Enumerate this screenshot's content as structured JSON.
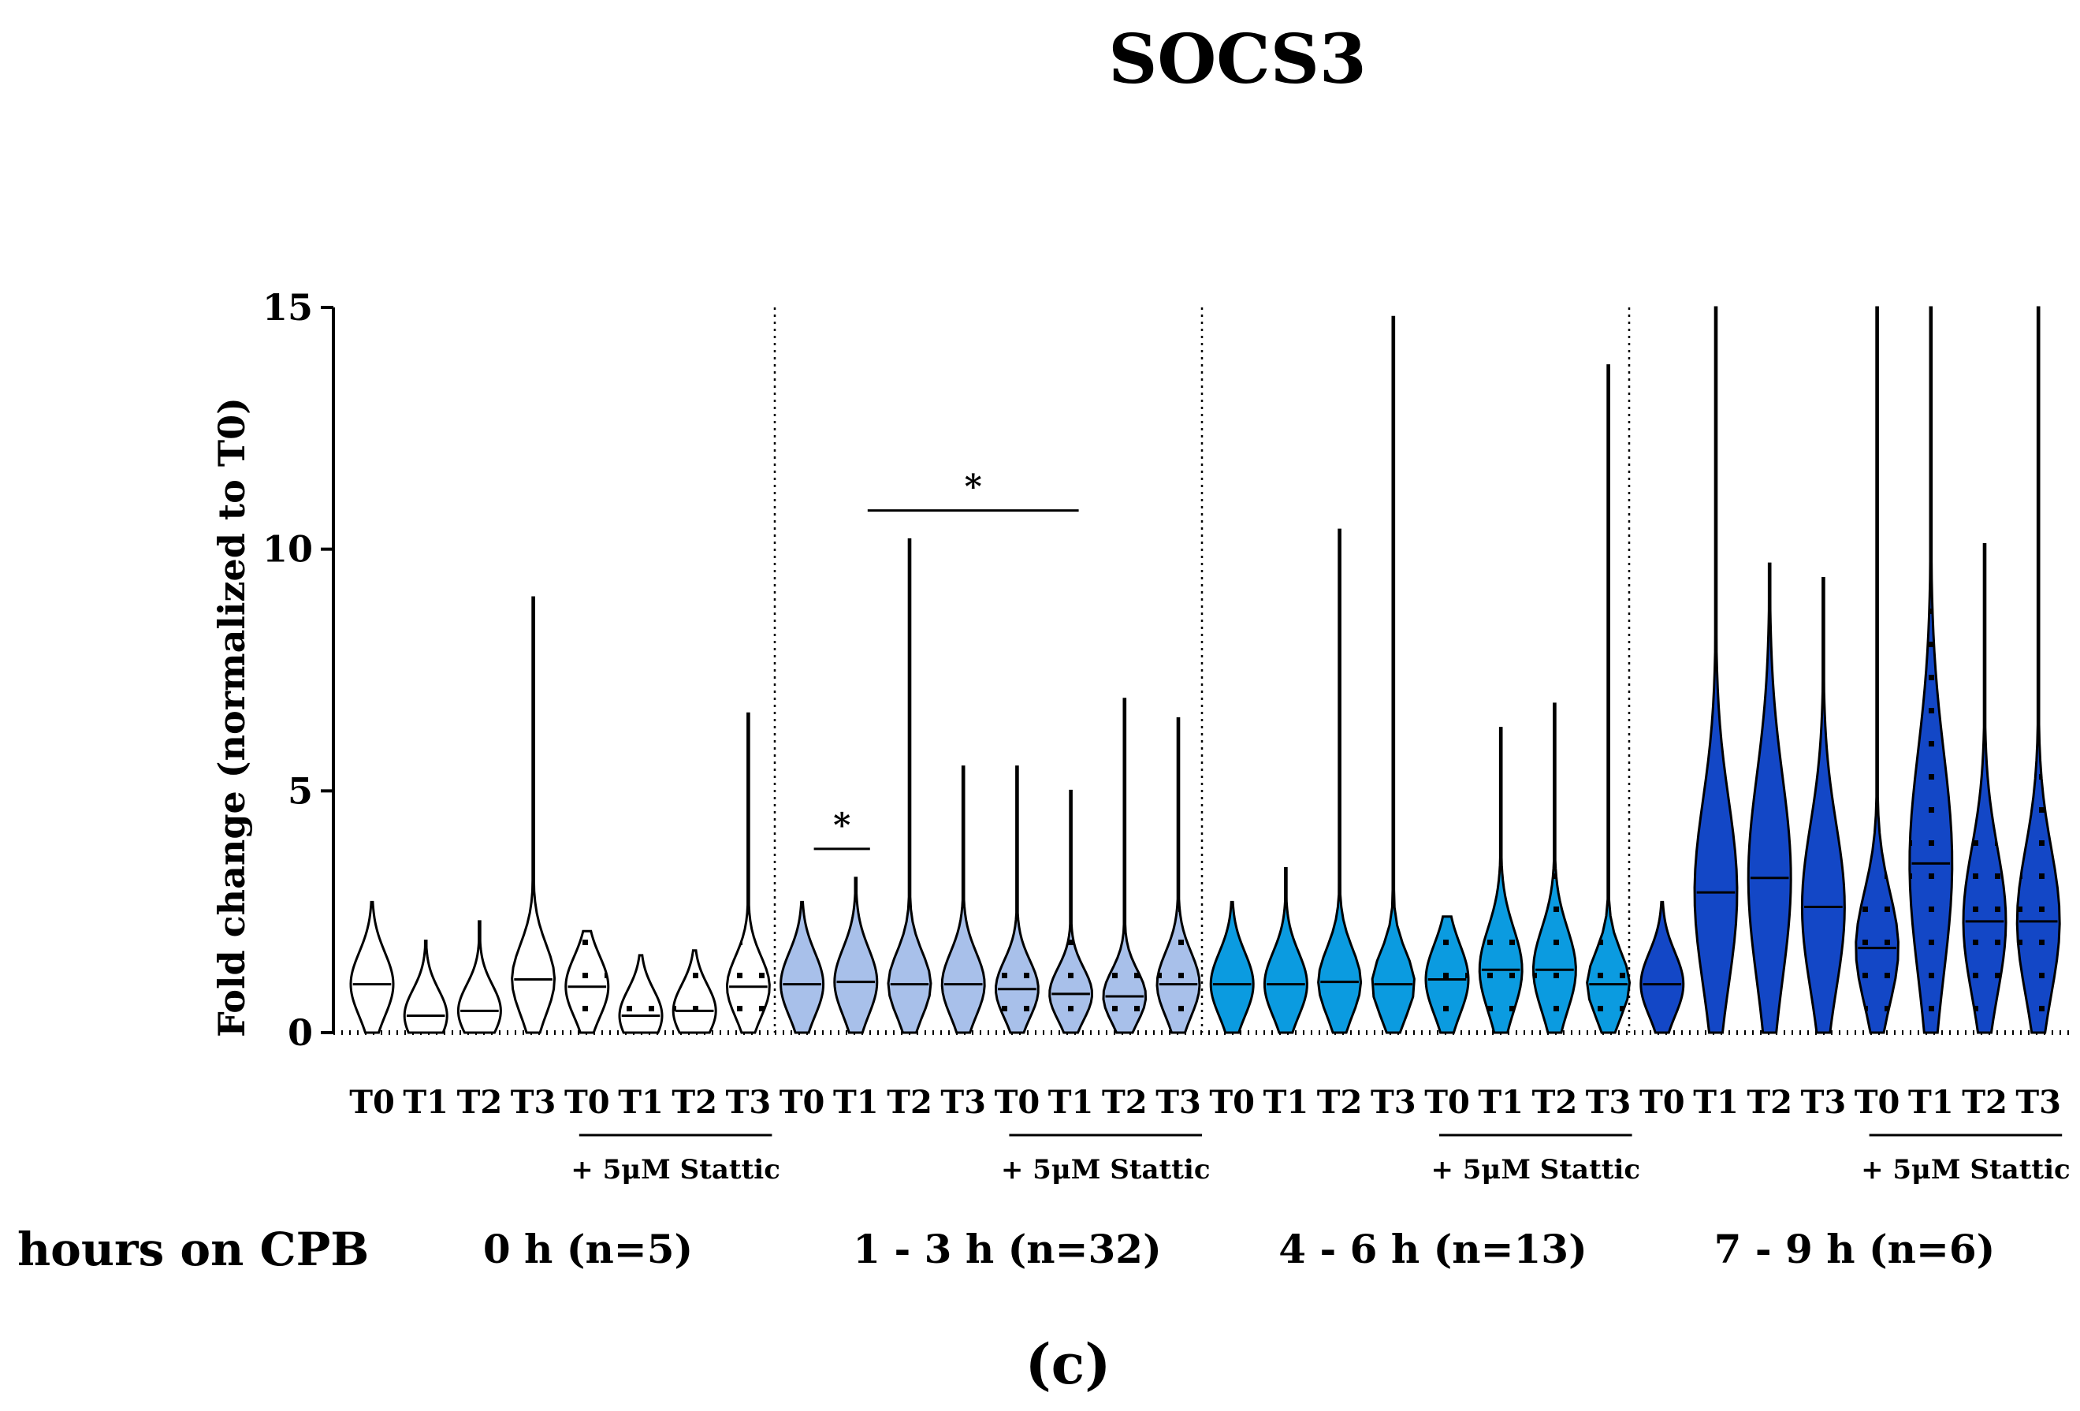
{
  "chart_data": {
    "type": "violin",
    "title": "SOCS3",
    "ylabel": "Fold change (normalized to T0)",
    "xlabel": "hours on CPB",
    "panel_label": "(c)",
    "ylim": [
      0,
      15
    ],
    "yticks": [
      0,
      5,
      10,
      15
    ],
    "timepoints": [
      "T0",
      "T1",
      "T2",
      "T3"
    ],
    "treatment_label": "+ 5μM Stattic",
    "colors": {
      "0h": "#ffffff",
      "1-3h": "#a8c0ea",
      "4-6h": "#0b9be0",
      "7-9h-light": "#1347c6",
      "7-9h-dark": "#0a2aa0"
    },
    "groups": [
      {
        "label": "0 h (n=5)",
        "color": "#ffffff",
        "violins": [
          {
            "tp": "T0",
            "stattic": false,
            "median": 1.0,
            "max": 2.7,
            "min": 0
          },
          {
            "tp": "T1",
            "stattic": false,
            "median": 0.35,
            "max": 1.9,
            "min": 0
          },
          {
            "tp": "T2",
            "stattic": false,
            "median": 0.45,
            "max": 2.3,
            "min": 0
          },
          {
            "tp": "T3",
            "stattic": false,
            "median": 1.1,
            "max": 9.0,
            "min": 0
          },
          {
            "tp": "T0",
            "stattic": true,
            "median": 0.95,
            "max": 2.1,
            "min": 0
          },
          {
            "tp": "T1",
            "stattic": true,
            "median": 0.35,
            "max": 1.6,
            "min": 0
          },
          {
            "tp": "T2",
            "stattic": true,
            "median": 0.45,
            "max": 1.7,
            "min": 0
          },
          {
            "tp": "T3",
            "stattic": true,
            "median": 0.95,
            "max": 6.6,
            "min": 0
          }
        ]
      },
      {
        "label": "1 - 3 h (n=32)",
        "color": "#a8c0ea",
        "violins": [
          {
            "tp": "T0",
            "stattic": false,
            "median": 1.0,
            "max": 2.7,
            "min": 0
          },
          {
            "tp": "T1",
            "stattic": false,
            "median": 1.05,
            "max": 3.2,
            "min": 0
          },
          {
            "tp": "T2",
            "stattic": false,
            "median": 1.0,
            "max": 10.2,
            "min": 0
          },
          {
            "tp": "T3",
            "stattic": false,
            "median": 1.0,
            "max": 5.5,
            "min": 0
          },
          {
            "tp": "T0",
            "stattic": true,
            "median": 0.9,
            "max": 5.5,
            "min": 0
          },
          {
            "tp": "T1",
            "stattic": true,
            "median": 0.8,
            "max": 5.0,
            "min": 0
          },
          {
            "tp": "T2",
            "stattic": true,
            "median": 0.75,
            "max": 6.9,
            "min": 0
          },
          {
            "tp": "T3",
            "stattic": true,
            "median": 1.0,
            "max": 6.5,
            "min": 0
          }
        ]
      },
      {
        "label": "4 - 6 h (n=13)",
        "color": "#0b9be0",
        "violins": [
          {
            "tp": "T0",
            "stattic": false,
            "median": 1.0,
            "max": 2.7,
            "min": 0
          },
          {
            "tp": "T1",
            "stattic": false,
            "median": 1.0,
            "max": 3.4,
            "min": 0
          },
          {
            "tp": "T2",
            "stattic": false,
            "median": 1.05,
            "max": 10.4,
            "min": 0
          },
          {
            "tp": "T3",
            "stattic": false,
            "median": 1.0,
            "max": 14.8,
            "min": 0
          },
          {
            "tp": "T0",
            "stattic": true,
            "median": 1.1,
            "max": 2.4,
            "min": 0
          },
          {
            "tp": "T1",
            "stattic": true,
            "median": 1.3,
            "max": 6.3,
            "min": 0
          },
          {
            "tp": "T2",
            "stattic": true,
            "median": 1.3,
            "max": 6.8,
            "min": 0
          },
          {
            "tp": "T3",
            "stattic": true,
            "median": 1.0,
            "max": 13.8,
            "min": 0
          }
        ]
      },
      {
        "label": "7 - 9 h (n=6)",
        "color": "#1347c6",
        "violins": [
          {
            "tp": "T0",
            "stattic": false,
            "median": 1.0,
            "max": 2.7,
            "min": 0
          },
          {
            "tp": "T1",
            "stattic": false,
            "median": 2.9,
            "max": 15,
            "min": 0
          },
          {
            "tp": "T2",
            "stattic": false,
            "median": 3.2,
            "max": 9.7,
            "min": 0
          },
          {
            "tp": "T3",
            "stattic": false,
            "median": 2.6,
            "max": 9.4,
            "min": 0
          },
          {
            "tp": "T0",
            "stattic": true,
            "median": 1.75,
            "max": 15,
            "min": 0
          },
          {
            "tp": "T1",
            "stattic": true,
            "median": 3.5,
            "max": 15,
            "min": 0
          },
          {
            "tp": "T2",
            "stattic": true,
            "median": 2.3,
            "max": 10.1,
            "min": 0
          },
          {
            "tp": "T3",
            "stattic": true,
            "median": 2.3,
            "max": 15,
            "min": 0
          }
        ]
      }
    ],
    "significance": [
      {
        "label": "*",
        "from": "1-3h T0",
        "to": "1-3h T1",
        "y": 3.8
      },
      {
        "label": "*",
        "from": "1-3h T1",
        "to": "1-3h T1 Stattic",
        "y": 10.8
      }
    ]
  }
}
